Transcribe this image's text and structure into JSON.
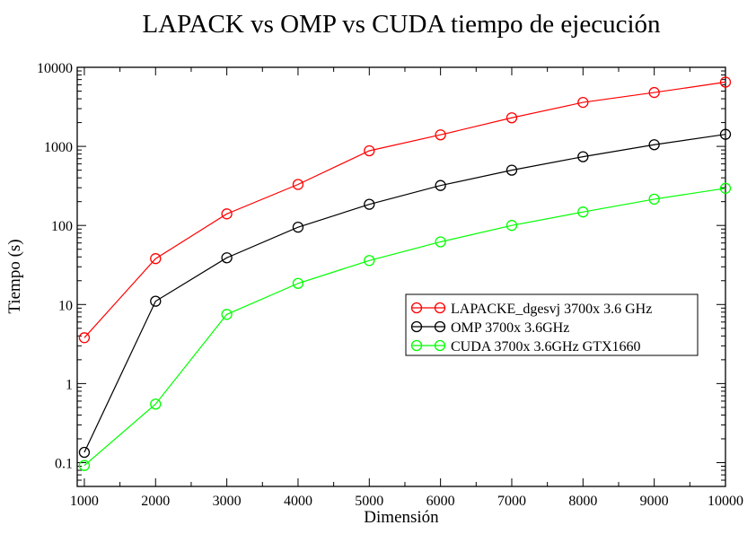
{
  "chart_data": {
    "type": "line",
    "title": "LAPACK vs OMP vs CUDA tiempo de ejecución",
    "xlabel": "Dimensión",
    "ylabel": "Tiempo (s)",
    "x": [
      1000,
      2000,
      3000,
      4000,
      5000,
      6000,
      7000,
      8000,
      9000,
      10000
    ],
    "xlim": [
      900,
      10000
    ],
    "ylim": [
      0.05,
      10000
    ],
    "yscale": "log",
    "x_ticks": [
      "1000",
      "2000",
      "3000",
      "4000",
      "5000",
      "6000",
      "7000",
      "8000",
      "9000",
      "10000"
    ],
    "y_ticks": [
      "0.1",
      "1",
      "10",
      "100",
      "1000",
      "10000"
    ],
    "grid": false,
    "legend_position": "right",
    "marker": "open-circle",
    "series": [
      {
        "name": "LAPACKE_dgesvj 3700x 3.6 GHz",
        "color": "#ff0000",
        "values": [
          3.8,
          38,
          140,
          330,
          880,
          1400,
          2300,
          3600,
          4800,
          6500
        ]
      },
      {
        "name": "OMP 3700x 3.6GHz",
        "color": "#000000",
        "values": [
          0.135,
          11,
          39,
          95,
          185,
          320,
          500,
          740,
          1050,
          1420
        ]
      },
      {
        "name": "CUDA 3700x 3.6GHz GTX1660",
        "color": "#00ff00",
        "values": [
          0.092,
          0.55,
          7.5,
          18.5,
          36,
          62,
          100,
          148,
          215,
          295
        ]
      }
    ]
  }
}
